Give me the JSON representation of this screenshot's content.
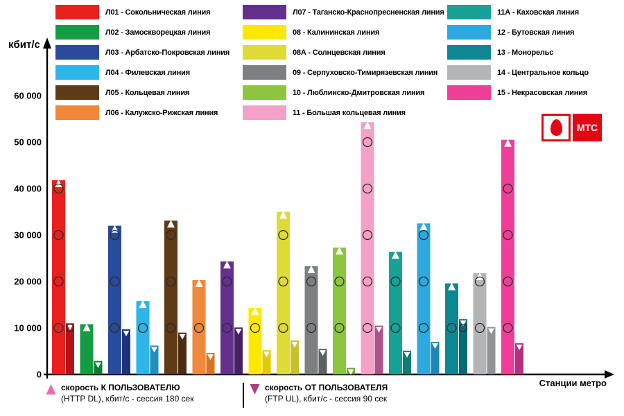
{
  "y_axis": {
    "label": "кбит/с",
    "ticks": [
      "60 000",
      "50 000",
      "40 000",
      "30 000",
      "20 000",
      "10 000",
      "0"
    ]
  },
  "x_axis": {
    "label": "Станции метро"
  },
  "logo": {
    "text": "МТС",
    "brand_color": "#e30613"
  },
  "legend": {
    "columns": [
      [
        {
          "label": "Л01 - Сокольническая линия",
          "color": "#e8201e"
        },
        {
          "label": "Л02 - Замоскворецкая линия",
          "color": "#169b45"
        },
        {
          "label": "Л03 - Арбатско-Покровская линия",
          "color": "#2a4b9b"
        },
        {
          "label": "Л04 - Филевская линия",
          "color": "#2eb6e9"
        },
        {
          "label": "Л05 - Кольцевая линия",
          "color": "#5e3a16"
        },
        {
          "label": "Л06 - Калужско-Рижская линия",
          "color": "#f0883b"
        }
      ],
      [
        {
          "label": "Л07 - Таганско-Краснопресненская линия",
          "color": "#63308b"
        },
        {
          "label": "08 - Калининская линия",
          "color": "#ffe800"
        },
        {
          "label": "08А - Солнцевская линия",
          "color": "#dedb34"
        },
        {
          "label": "09 - Серпуховско-Тимирязевская линия",
          "color": "#7d8083"
        },
        {
          "label": "10 - Люблинско-Дмитровская линия",
          "color": "#8cc63f"
        },
        {
          "label": "11 - Большая кольцевая линия",
          "color": "#f5a0c6"
        }
      ],
      [
        {
          "label": "11А - Каховская линия",
          "color": "#16a296"
        },
        {
          "label": "12 - Бутовская линия",
          "color": "#2da9e0"
        },
        {
          "label": "13 - Монорельс",
          "color": "#0e8793"
        },
        {
          "label": "14 - Центральное кольцо",
          "color": "#b3b5b7"
        },
        {
          "label": "15 - Некрасовская линия",
          "color": "#ee3e97"
        }
      ]
    ]
  },
  "chart_data": {
    "type": "bar",
    "ylabel": "кбит/с",
    "xlabel": "Станции метро",
    "ylim": [
      0,
      60000
    ],
    "grid": false,
    "legend_position": "top",
    "categories": [
      "Л01 - Сокольническая линия",
      "Л02 - Замоскворецкая линия",
      "Л03 - Арбатско-Покровская линия",
      "Л04 - Филевская линия",
      "Л05 - Кольцевая линия",
      "Л06 - Калужско-Рижская линия",
      "Л07 - Таганско-Краснопресненская линия",
      "08 - Калининская линия",
      "08А - Солнцевская линия",
      "09 - Серпуховско-Тимирязевская линия",
      "10 - Люблинско-Дмитровская линия",
      "11 - Большая кольцевая линия",
      "11А - Каховская линия",
      "12 - Бутовская линия",
      "13 - Монорельс",
      "14 - Центральное кольцо",
      "15 - Некрасовская линия"
    ],
    "series": [
      {
        "name": "скорость К ПОЛЬЗОВАТЕЛЮ (HTTP DL), кбит/с - сессия 180 сек",
        "values": [
          41800,
          10800,
          32000,
          15800,
          33100,
          20300,
          24300,
          14300,
          35000,
          23300,
          27300,
          54300,
          26400,
          32500,
          19600,
          21800,
          50500
        ],
        "colors": [
          "#e8201e",
          "#169b45",
          "#2a4b9b",
          "#2eb6e9",
          "#5e3a16",
          "#f0883b",
          "#63308b",
          "#ffe800",
          "#dedb34",
          "#7d8083",
          "#8cc63f",
          "#f5a0c6",
          "#16a296",
          "#2da9e0",
          "#0e8793",
          "#b3b5b7",
          "#ee3e97"
        ]
      },
      {
        "name": "скорость ОТ ПОЛЬЗОВАТЕЛЯ (FTP UL), кбит/с - сессия 90 сек",
        "values": [
          11000,
          2900,
          9700,
          6200,
          9000,
          4600,
          10100,
          5200,
          7300,
          5500,
          1400,
          10500,
          5100,
          7000,
          11900,
          10200,
          6700
        ],
        "colors": [
          "#b5131b",
          "#0e7c35",
          "#1c3577",
          "#1f8fc0",
          "#4a2c10",
          "#d9731f",
          "#472066",
          "#e3c900",
          "#c6c22a",
          "#5e6164",
          "#71a52f",
          "#ad5188",
          "#0d7e73",
          "#1e86b6",
          "#0a6a74",
          "#909295",
          "#b53081"
        ]
      }
    ]
  },
  "bottom_legend": [
    {
      "line1": "скорость К ПОЛЬЗОВАТЕЛЮ",
      "line2": "(HTTP DL), кбит/с - сессия 180 сек",
      "marker_color": "#f06ba8",
      "direction": "up"
    },
    {
      "line1": "скорость ОТ ПОЛЬЗОВАТЕЛЯ",
      "line2": "(FTP UL), кбит/с - сессия 90 сек",
      "marker_color": "#b03d7e",
      "direction": "down"
    }
  ]
}
